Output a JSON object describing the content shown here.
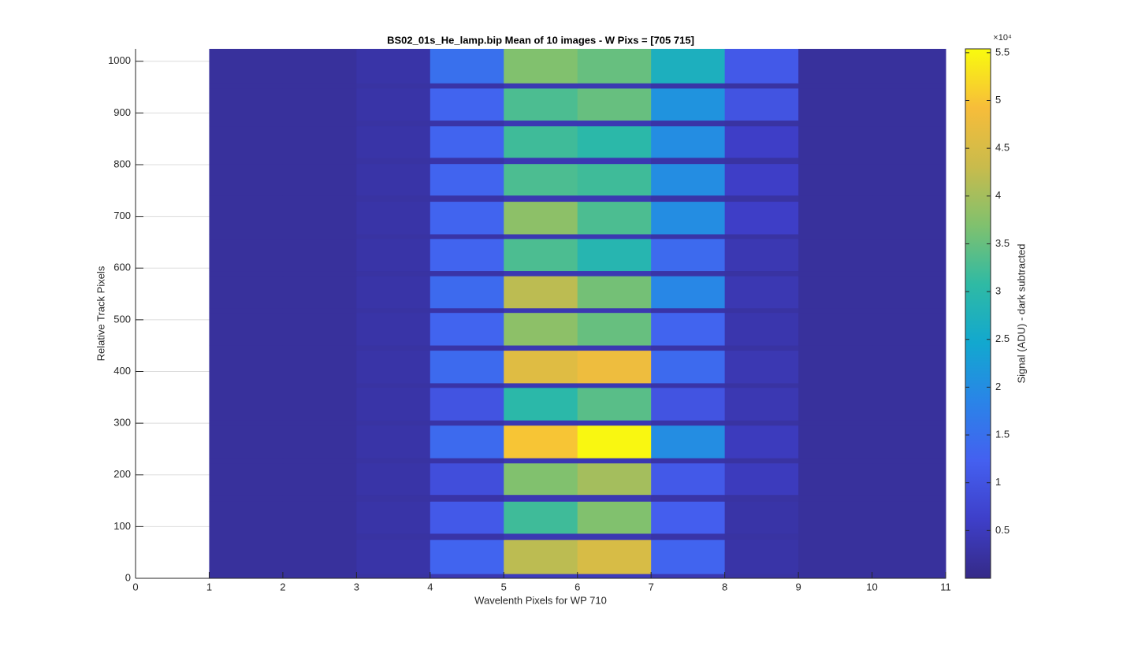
{
  "chart_data": {
    "type": "heatmap",
    "title": "BS02_01s_He_lamp.bip  Mean of 10 images - W Pixs = [705  715]",
    "xlabel": "Wavelenth Pixels for WP 710",
    "ylabel": "Relative Track Pixels",
    "colorbar_label": "Signal (ADU) - dark subtracted",
    "colorbar_exponent": "×10⁴",
    "xlim": [
      0,
      11
    ],
    "ylim": [
      0,
      1024
    ],
    "xticks": [
      0,
      1,
      2,
      3,
      4,
      5,
      6,
      7,
      8,
      9,
      10,
      11
    ],
    "yticks": [
      0,
      100,
      200,
      300,
      400,
      500,
      600,
      700,
      800,
      900,
      1000
    ],
    "grid": true,
    "x_edges": [
      1,
      2,
      3,
      4,
      5,
      6,
      7,
      8,
      9,
      10,
      11
    ],
    "y_edges": [
      0,
      9,
      75,
      87,
      149,
      162,
      223,
      233,
      296,
      306,
      369,
      378,
      441,
      451,
      514,
      523,
      585,
      595,
      657,
      666,
      729,
      741,
      802,
      814,
      875,
      886,
      948,
      958,
      1024
    ],
    "values": [
      [
        2000,
        2000,
        2500,
        4000,
        5000,
        5000,
        4000,
        2500,
        2000,
        2000
      ],
      [
        2000,
        2000,
        3000,
        13000,
        42000,
        45000,
        13000,
        3000,
        2000,
        2000
      ],
      [
        2000,
        2000,
        2500,
        3000,
        4000,
        4000,
        3000,
        2500,
        2000,
        2000
      ],
      [
        2000,
        2000,
        3000,
        11000,
        32000,
        37000,
        12000,
        3000,
        2000,
        2000
      ],
      [
        2000,
        2000,
        2500,
        3000,
        4000,
        4000,
        3000,
        2500,
        2000,
        2000
      ],
      [
        2000,
        2000,
        3000,
        9000,
        37000,
        40000,
        11000,
        5000,
        2000,
        2000
      ],
      [
        2000,
        2000,
        2500,
        3000,
        4000,
        4000,
        3000,
        2500,
        2000,
        2000
      ],
      [
        2000,
        2000,
        3000,
        14000,
        50000,
        55000,
        20000,
        5000,
        2000,
        2000
      ],
      [
        2000,
        2000,
        2500,
        3000,
        4000,
        4000,
        3000,
        2500,
        2000,
        2000
      ],
      [
        2000,
        2000,
        3000,
        10000,
        30000,
        34000,
        10000,
        4000,
        2000,
        2000
      ],
      [
        2000,
        2000,
        2500,
        3000,
        4000,
        4000,
        3000,
        2500,
        2000,
        2000
      ],
      [
        2000,
        2000,
        3000,
        14000,
        46000,
        48000,
        14000,
        4000,
        2000,
        2000
      ],
      [
        2000,
        2000,
        2500,
        3000,
        4000,
        4000,
        3000,
        2500,
        2000,
        2000
      ],
      [
        2000,
        2000,
        3000,
        13000,
        38000,
        35000,
        13000,
        3500,
        2000,
        2000
      ],
      [
        2000,
        2000,
        2500,
        3000,
        4000,
        4000,
        3000,
        2500,
        2000,
        2000
      ],
      [
        2000,
        2000,
        3000,
        14000,
        42000,
        36000,
        19000,
        4000,
        2000,
        2000
      ],
      [
        2000,
        2000,
        2500,
        3000,
        4000,
        4000,
        3000,
        2500,
        2000,
        2000
      ],
      [
        2000,
        2000,
        3000,
        13000,
        33000,
        29000,
        14000,
        4000,
        2000,
        2000
      ],
      [
        2000,
        2000,
        2500,
        3000,
        4000,
        4000,
        3000,
        2500,
        2000,
        2000
      ],
      [
        2000,
        2000,
        3000,
        13000,
        38000,
        33000,
        20000,
        6000,
        2000,
        2000
      ],
      [
        2000,
        2000,
        2500,
        3000,
        4000,
        4000,
        3000,
        2500,
        2000,
        2000
      ],
      [
        2000,
        2000,
        3000,
        13000,
        33000,
        32000,
        20000,
        6000,
        2000,
        2000
      ],
      [
        2000,
        2000,
        2500,
        3000,
        4000,
        4000,
        3000,
        2500,
        2000,
        2000
      ],
      [
        2000,
        2000,
        3000,
        13000,
        32000,
        30000,
        20000,
        6000,
        2000,
        2000
      ],
      [
        2000,
        2000,
        2500,
        3000,
        4000,
        4000,
        3000,
        2500,
        2000,
        2000
      ],
      [
        2000,
        2000,
        3000,
        13000,
        33000,
        35000,
        21000,
        10000,
        2000,
        2000
      ],
      [
        2000,
        2000,
        2500,
        3000,
        4000,
        4000,
        3000,
        2500,
        2000,
        2000
      ],
      [
        2000,
        2000,
        3000,
        15000,
        37000,
        35000,
        27000,
        11000,
        2000,
        2000
      ]
    ],
    "clim": [
      0,
      55400
    ],
    "cticks": [
      {
        "value": 5000,
        "label": "0.5"
      },
      {
        "value": 10000,
        "label": "1"
      },
      {
        "value": 15000,
        "label": "1.5"
      },
      {
        "value": 20000,
        "label": "2"
      },
      {
        "value": 25000,
        "label": "2.5"
      },
      {
        "value": 30000,
        "label": "3"
      },
      {
        "value": 35000,
        "label": "3.5"
      },
      {
        "value": 40000,
        "label": "4"
      },
      {
        "value": 45000,
        "label": "4.5"
      },
      {
        "value": 50000,
        "label": "5"
      },
      {
        "value": 55000,
        "label": "5.5"
      }
    ],
    "colormap": [
      "#352a87",
      "#3e3fc9",
      "#4460f0",
      "#2a84e8",
      "#12a8cf",
      "#2fbaa4",
      "#80c16e",
      "#c9bb4c",
      "#f7bd3a",
      "#f9fb0e"
    ]
  }
}
